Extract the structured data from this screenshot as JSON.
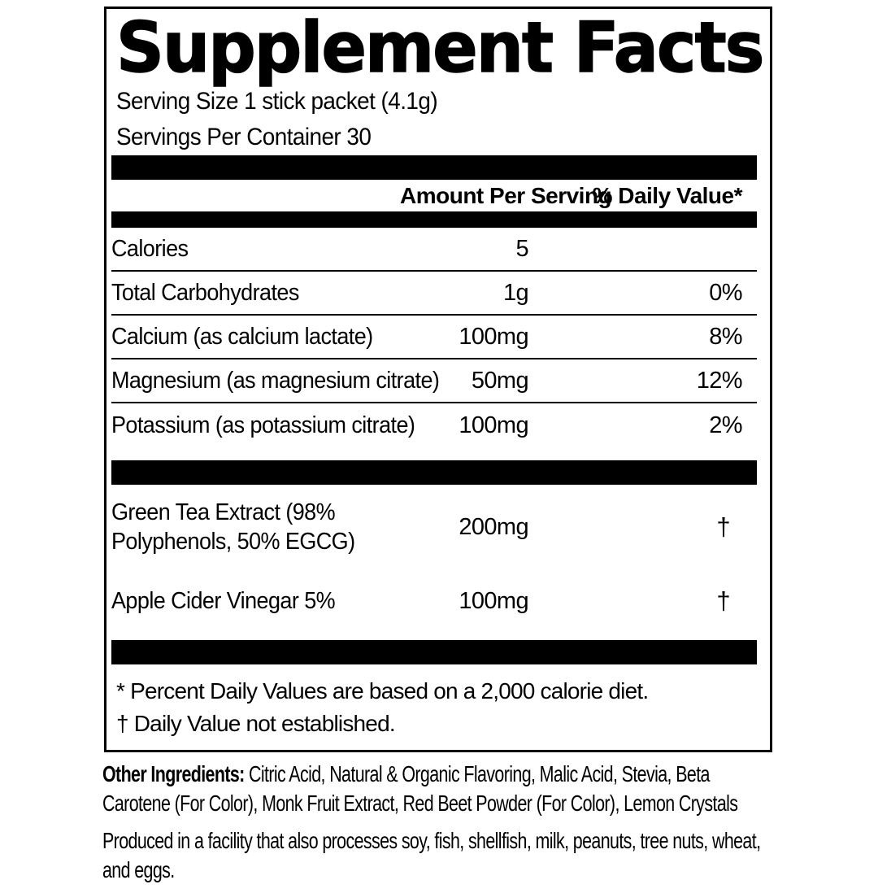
{
  "panel": {
    "title": "Supplement Facts",
    "serving_size": "Serving Size 1 stick packet (4.1g)",
    "servings_per_container": "Servings Per Container 30",
    "column_headers": {
      "amount": "Amount Per Serving",
      "daily_value": "% Daily Value*"
    },
    "rows": [
      {
        "name": "Calories",
        "amount": "5",
        "daily_value": ""
      },
      {
        "name": "Total Carbohydrates",
        "amount": "1g",
        "daily_value": "0%"
      },
      {
        "name": "Calcium (as calcium lactate)",
        "amount": "100mg",
        "daily_value": "8%"
      },
      {
        "name": "Magnesium (as magnesium citrate)",
        "amount": "50mg",
        "daily_value": "12%"
      },
      {
        "name": "Potassium (as potassium citrate)",
        "amount": "100mg",
        "daily_value": "2%"
      }
    ],
    "extra_rows": [
      {
        "name": "Green Tea Extract (98% Polyphenols, 50% EGCG)",
        "amount": "200mg",
        "daily_value": "†"
      },
      {
        "name": "Apple Cider Vinegar 5%",
        "amount": "100mg",
        "daily_value": "†"
      }
    ],
    "footnotes": [
      "* Percent Daily Values are based on a 2,000 calorie diet.",
      "† Daily Value not established."
    ]
  },
  "other_ingredients": {
    "label": "Other Ingredients:",
    "text": "Citric Acid, Natural & Organic Flavoring, Malic Acid, Stevia, Beta Carotene (For Color), Monk Fruit Extract, Red Beet Powder (For Color), Lemon Crystals"
  },
  "allergen_statement": "Produced in a facility that also processes soy, fish, shellfish, milk, peanuts, tree nuts, wheat, and eggs.",
  "colors": {
    "text": "#000000",
    "background": "#ffffff",
    "bar": "#000000"
  }
}
